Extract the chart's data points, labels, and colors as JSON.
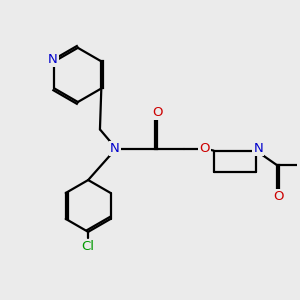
{
  "bg_color": "#ebebeb",
  "bond_color": "#000000",
  "bond_width": 1.6,
  "atom_colors": {
    "N": "#0000cc",
    "O": "#cc0000",
    "Cl": "#009900",
    "C": "#000000"
  },
  "font_size_atom": 9.5
}
